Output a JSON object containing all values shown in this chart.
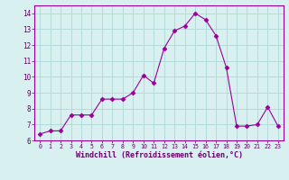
{
  "x": [
    0,
    1,
    2,
    3,
    4,
    5,
    6,
    7,
    8,
    9,
    10,
    11,
    12,
    13,
    14,
    15,
    16,
    17,
    18,
    19,
    20,
    21,
    22,
    23
  ],
  "y": [
    6.4,
    6.6,
    6.6,
    7.6,
    7.6,
    7.6,
    8.6,
    8.6,
    8.6,
    9.0,
    10.1,
    9.6,
    11.8,
    12.9,
    13.2,
    14.0,
    13.6,
    12.6,
    10.6,
    6.9,
    6.9,
    7.0,
    8.1,
    6.9
  ],
  "line_color": "#990099",
  "marker": "D",
  "marker_size": 2.5,
  "bg_color": "#d8f0f0",
  "grid_color": "#b0d8d8",
  "xlabel": "Windchill (Refroidissement éolien,°C)",
  "xlim": [
    -0.5,
    23.5
  ],
  "ylim": [
    6,
    14.5
  ],
  "yticks": [
    6,
    7,
    8,
    9,
    10,
    11,
    12,
    13,
    14
  ],
  "xticks": [
    0,
    1,
    2,
    3,
    4,
    5,
    6,
    7,
    8,
    9,
    10,
    11,
    12,
    13,
    14,
    15,
    16,
    17,
    18,
    19,
    20,
    21,
    22,
    23
  ],
  "tick_color": "#660066",
  "label_color": "#660066",
  "spine_color": "#990099"
}
